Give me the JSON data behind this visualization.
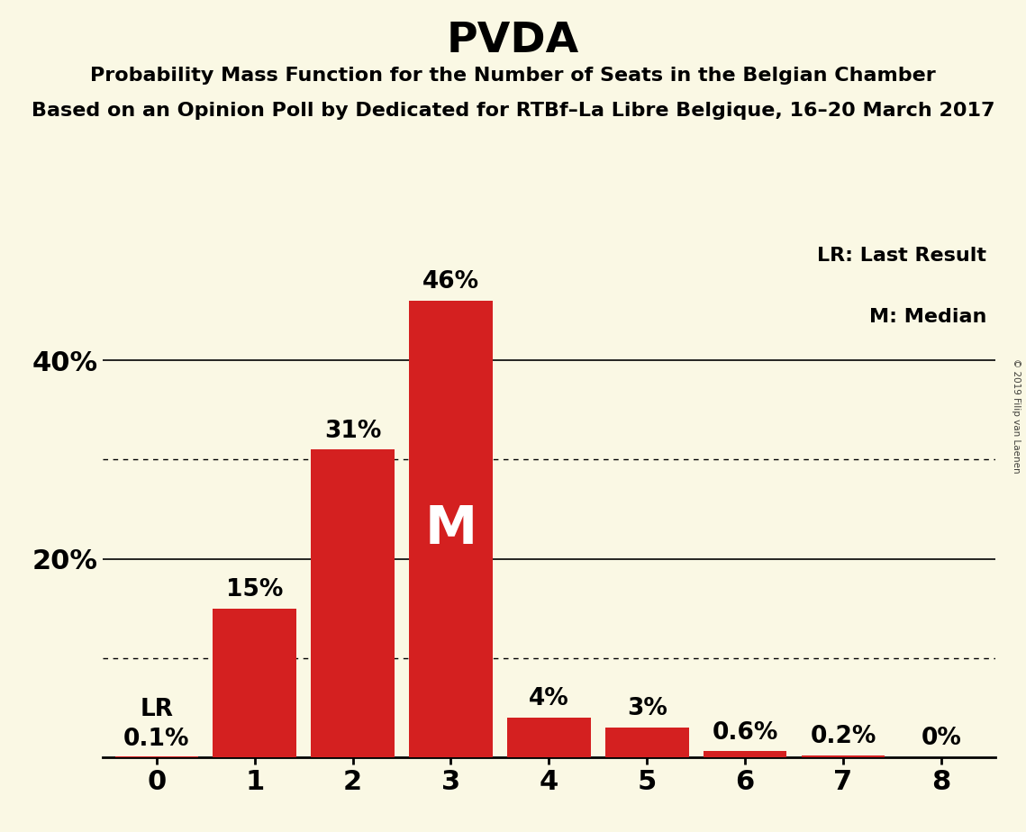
{
  "title": "PVDA",
  "subtitle1": "Probability Mass Function for the Number of Seats in the Belgian Chamber",
  "subtitle2": "Based on an Opinion Poll by Dedicated for RTBf–La Libre Belgique, 16–20 March 2017",
  "watermark": "© 2019 Filip van Laenen",
  "categories": [
    0,
    1,
    2,
    3,
    4,
    5,
    6,
    7,
    8
  ],
  "values": [
    0.001,
    0.15,
    0.31,
    0.46,
    0.04,
    0.03,
    0.006,
    0.002,
    0.0
  ],
  "bar_labels": [
    "0.1%",
    "15%",
    "31%",
    "46%",
    "4%",
    "3%",
    "0.6%",
    "0.2%",
    "0%"
  ],
  "bar_color": "#d42020",
  "background_color": "#faf8e4",
  "title_fontsize": 34,
  "subtitle_fontsize": 16,
  "label_fontsize": 19,
  "tick_fontsize": 22,
  "ytick_labels": [
    "20%",
    "40%"
  ],
  "ytick_values": [
    0.2,
    0.4
  ],
  "dotted_lines": [
    0.1,
    0.3
  ],
  "solid_lines": [
    0.2,
    0.4
  ],
  "median_bar": 3,
  "lr_bar": 0,
  "ylim": [
    0,
    0.52
  ],
  "legend_text1": "LR: Last Result",
  "legend_text2": "M: Median"
}
